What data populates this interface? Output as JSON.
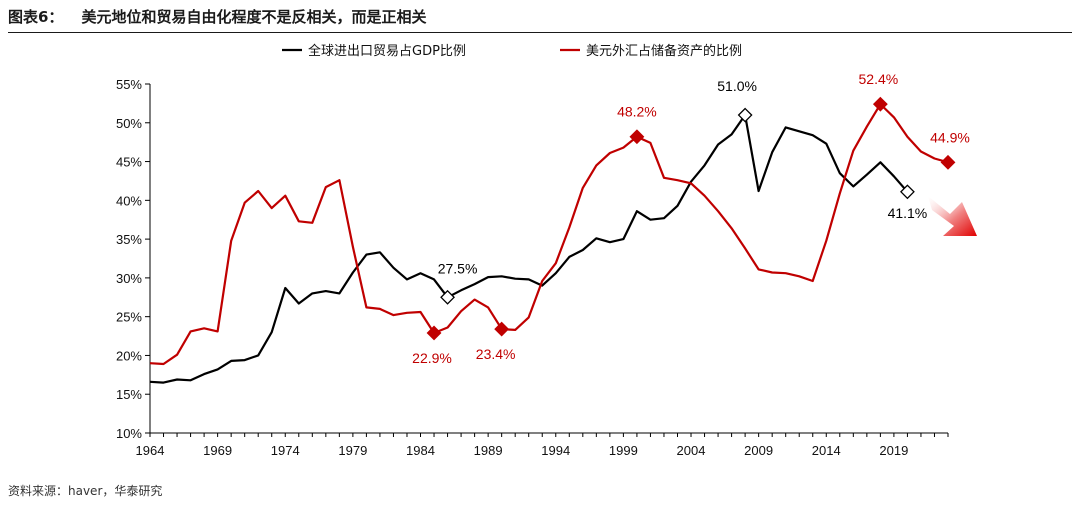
{
  "header": {
    "figure_label": "图表6：",
    "title": "美元地位和贸易自由化程度不是反相关，而是正相关"
  },
  "source": "资料来源：haver，华泰研究",
  "colors": {
    "black_series": "#000000",
    "red_series": "#c00000",
    "arrow": "#e02020"
  },
  "chart_data": {
    "type": "line",
    "title": "美元地位和贸易自由化程度不是反相关，而是正相关",
    "xlabel": "",
    "ylabel": "",
    "xlim": [
      1964,
      2023
    ],
    "ylim": [
      10,
      55
    ],
    "y_ticks": [
      10,
      15,
      20,
      25,
      30,
      35,
      40,
      45,
      50,
      55
    ],
    "y_tick_labels": [
      "10%",
      "15%",
      "20%",
      "25%",
      "30%",
      "35%",
      "40%",
      "45%",
      "50%",
      "55%"
    ],
    "x_ticks": [
      1964,
      1969,
      1974,
      1979,
      1984,
      1989,
      1994,
      1999,
      2004,
      2009,
      2014,
      2019
    ],
    "x_tick_labels": [
      "1964",
      "1969",
      "1974",
      "1979",
      "1984",
      "1989",
      "1994",
      "1999",
      "2004",
      "2009",
      "2014",
      "2019"
    ],
    "legend_position": "top-center",
    "series": [
      {
        "name": "全球进出口贸易占GDP比例",
        "color": "#000000",
        "x": [
          1964,
          1965,
          1966,
          1967,
          1968,
          1969,
          1970,
          1971,
          1972,
          1973,
          1974,
          1975,
          1976,
          1977,
          1978,
          1979,
          1980,
          1981,
          1982,
          1983,
          1984,
          1985,
          1986,
          1987,
          1988,
          1989,
          1990,
          1991,
          1992,
          1993,
          1994,
          1995,
          1996,
          1997,
          1998,
          1999,
          2000,
          2001,
          2002,
          2003,
          2004,
          2005,
          2006,
          2007,
          2008,
          2009,
          2010,
          2011,
          2012,
          2013,
          2014,
          2015,
          2016,
          2017,
          2018,
          2019,
          2020
        ],
        "values": [
          16.6,
          16.5,
          16.9,
          16.8,
          17.6,
          18.2,
          19.3,
          19.4,
          20.0,
          23.0,
          28.7,
          26.7,
          28.0,
          28.3,
          28.0,
          30.7,
          33.0,
          33.3,
          31.3,
          29.8,
          30.6,
          29.8,
          27.5,
          28.4,
          29.2,
          30.1,
          30.2,
          29.9,
          29.8,
          29.0,
          30.6,
          32.7,
          33.6,
          35.1,
          34.6,
          35.0,
          38.6,
          37.5,
          37.7,
          39.3,
          42.4,
          44.5,
          47.2,
          48.5,
          51.0,
          41.2,
          46.2,
          49.4,
          48.9,
          48.4,
          47.3,
          43.5,
          41.8,
          43.3,
          44.9,
          43.1,
          41.1
        ]
      },
      {
        "name": "美元外汇占储备资产的比例",
        "color": "#c00000",
        "x": [
          1964,
          1965,
          1966,
          1967,
          1968,
          1969,
          1970,
          1971,
          1972,
          1973,
          1974,
          1975,
          1976,
          1977,
          1978,
          1979,
          1980,
          1981,
          1982,
          1983,
          1984,
          1985,
          1986,
          1987,
          1988,
          1989,
          1990,
          1991,
          1992,
          1993,
          1994,
          1995,
          1996,
          1997,
          1998,
          1999,
          2000,
          2001,
          2002,
          2003,
          2004,
          2005,
          2006,
          2007,
          2008,
          2009,
          2010,
          2011,
          2012,
          2013,
          2014,
          2015,
          2016,
          2017,
          2018,
          2019,
          2020,
          2021,
          2022,
          2023
        ],
        "values": [
          19.0,
          18.9,
          20.1,
          23.1,
          23.5,
          23.1,
          34.8,
          39.7,
          41.2,
          39.0,
          40.6,
          37.3,
          37.1,
          41.7,
          42.6,
          34.0,
          26.2,
          26.0,
          25.2,
          25.5,
          25.6,
          22.9,
          23.6,
          25.7,
          27.2,
          26.2,
          23.4,
          23.3,
          24.9,
          29.6,
          31.9,
          36.5,
          41.6,
          44.5,
          46.1,
          46.8,
          48.2,
          47.4,
          42.9,
          42.6,
          42.2,
          40.6,
          38.6,
          36.4,
          33.8,
          31.1,
          30.7,
          30.6,
          30.2,
          29.6,
          34.8,
          40.9,
          46.4,
          49.5,
          52.4,
          50.7,
          48.2,
          46.3,
          45.4,
          44.9
        ]
      }
    ],
    "annotations": [
      {
        "series": 0,
        "x": 1986,
        "y": 27.5,
        "label": "27.5%",
        "marker": "diamond-open"
      },
      {
        "series": 0,
        "x": 2008,
        "y": 51.0,
        "label": "51.0%",
        "marker": "diamond-open"
      },
      {
        "series": 0,
        "x": 2020,
        "y": 41.1,
        "label": "41.1%",
        "marker": "diamond-open"
      },
      {
        "series": 1,
        "x": 1985,
        "y": 22.9,
        "label": "22.9%",
        "marker": "diamond-filled"
      },
      {
        "series": 1,
        "x": 1990,
        "y": 23.4,
        "label": "23.4%",
        "marker": "diamond-filled"
      },
      {
        "series": 1,
        "x": 2000,
        "y": 48.2,
        "label": "48.2%",
        "marker": "diamond-filled"
      },
      {
        "series": 1,
        "x": 2018,
        "y": 52.4,
        "label": "52.4%",
        "marker": "diamond-filled"
      },
      {
        "series": 1,
        "x": 2023,
        "y": 44.9,
        "label": "44.9%",
        "marker": "diamond-filled"
      }
    ]
  }
}
